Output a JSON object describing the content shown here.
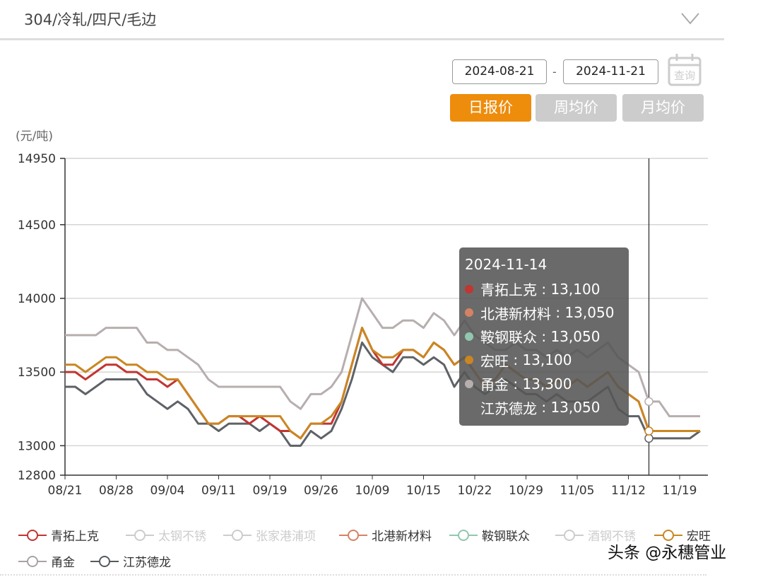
{
  "header": {
    "title": "304/冷轧/四尺/毛边"
  },
  "filters": {
    "start_date": "2024-08-21",
    "separator": "-",
    "end_date": "2024-11-21",
    "query_label": "查询"
  },
  "tabs": [
    {
      "label": "日报价",
      "active": true
    },
    {
      "label": "周均价",
      "active": false
    },
    {
      "label": "月均价",
      "active": false
    }
  ],
  "colors": {
    "accent": "#EE8C0C",
    "inactive_tab": "#CCCCCC"
  },
  "chart_data": {
    "type": "line",
    "ylabel": "(元/吨)",
    "ylim": [
      12800,
      14950
    ],
    "yticks": [
      12800,
      13000,
      13500,
      14000,
      14500,
      14950
    ],
    "grid": true,
    "legend_position": "bottom",
    "categories": [
      "08/21",
      "08/22",
      "08/23",
      "08/26",
      "08/27",
      "08/28",
      "08/29",
      "08/30",
      "09/02",
      "09/03",
      "09/04",
      "09/05",
      "09/06",
      "09/09",
      "09/10",
      "09/11",
      "09/12",
      "09/13",
      "09/14",
      "09/18",
      "09/19",
      "09/20",
      "09/23",
      "09/24",
      "09/25",
      "09/26",
      "09/27",
      "09/29",
      "09/30",
      "10/08",
      "10/09",
      "10/10",
      "10/11",
      "10/12",
      "10/14",
      "10/15",
      "10/16",
      "10/17",
      "10/18",
      "10/21",
      "10/22",
      "10/23",
      "10/24",
      "10/25",
      "10/28",
      "10/29",
      "10/30",
      "10/31",
      "11/01",
      "11/04",
      "11/05",
      "11/06",
      "11/07",
      "11/08",
      "11/11",
      "11/12",
      "11/13",
      "11/14",
      "11/15",
      "11/18",
      "11/19",
      "11/20",
      "11/21"
    ],
    "xtick_labels": [
      "08/21",
      "08/28",
      "09/04",
      "09/11",
      "09/19",
      "09/26",
      "10/09",
      "10/15",
      "10/22",
      "10/29",
      "11/05",
      "11/12",
      "11/19"
    ],
    "legend": [
      {
        "name": "青拓上克",
        "color": "#C23531",
        "enabled": true
      },
      {
        "name": "太钢不锈",
        "color": "#CCCCCC",
        "enabled": false
      },
      {
        "name": "张家港浦项",
        "color": "#CCCCCC",
        "enabled": false
      },
      {
        "name": "北港新材料",
        "color": "#D48265",
        "enabled": true
      },
      {
        "name": "鞍钢联众",
        "color": "#91C7AE",
        "enabled": true
      },
      {
        "name": "酒钢不锈",
        "color": "#CCCCCC",
        "enabled": false
      },
      {
        "name": "宏旺",
        "color": "#CA8622",
        "enabled": true
      },
      {
        "name": "甬金",
        "color": "#AAA3A3",
        "enabled": true
      },
      {
        "name": "江苏德龙",
        "color": "#555A5E",
        "enabled": true
      }
    ],
    "series": [
      {
        "name": "甬金",
        "color": "#B7AEAE",
        "values": [
          13750,
          13750,
          13750,
          13750,
          13800,
          13800,
          13800,
          13800,
          13700,
          13700,
          13650,
          13650,
          13600,
          13550,
          13450,
          13400,
          13400,
          13400,
          13400,
          13400,
          13400,
          13400,
          13300,
          13250,
          13350,
          13350,
          13400,
          13500,
          13750,
          14000,
          13900,
          13800,
          13800,
          13850,
          13850,
          13800,
          13900,
          13850,
          13750,
          13850,
          13750,
          13700,
          13650,
          13650,
          13700,
          13650,
          13650,
          13600,
          13650,
          13600,
          13650,
          13600,
          13650,
          13700,
          13600,
          13550,
          13500,
          13300,
          13300,
          13200,
          13200,
          13200,
          13200
        ]
      },
      {
        "name": "江苏德龙",
        "color": "#5E6266",
        "values": [
          13400,
          13400,
          13350,
          13400,
          13450,
          13450,
          13450,
          13450,
          13350,
          13300,
          13250,
          13300,
          13250,
          13150,
          13150,
          13100,
          13150,
          13150,
          13150,
          13100,
          13150,
          13100,
          13000,
          13000,
          13100,
          13050,
          13100,
          13250,
          13450,
          13700,
          13600,
          13550,
          13500,
          13600,
          13600,
          13550,
          13600,
          13550,
          13400,
          13500,
          13400,
          13350,
          13400,
          13450,
          13400,
          13350,
          13350,
          13300,
          13350,
          13300,
          13300,
          13300,
          13350,
          13400,
          13250,
          13200,
          13200,
          13050,
          13050,
          13050,
          13050,
          13050,
          13100
        ]
      },
      {
        "name": "青拓上克",
        "color": "#C23531",
        "values": [
          13500,
          13500,
          13450,
          13500,
          13550,
          13550,
          13500,
          13500,
          13450,
          13450,
          13400,
          13450,
          13350,
          13250,
          13150,
          13150,
          13200,
          13200,
          13150,
          13200,
          13150,
          13100,
          13100,
          13050,
          13150,
          13150,
          13150,
          13300,
          13550,
          13800,
          13650,
          13550,
          13550,
          13650,
          13650,
          13600,
          13700,
          13650,
          13550,
          13600,
          13500,
          13400,
          13450,
          13550,
          13500,
          13450,
          13450,
          13400,
          13450,
          13400,
          13450,
          13400,
          13450,
          13500,
          13400,
          13350,
          13300,
          13100,
          13100,
          13100,
          13100,
          13100,
          13100
        ]
      },
      {
        "name": "宏旺",
        "color": "#CA8622",
        "values": [
          13550,
          13550,
          13500,
          13550,
          13600,
          13600,
          13550,
          13550,
          13500,
          13500,
          13450,
          13450,
          13350,
          13250,
          13150,
          13150,
          13200,
          13200,
          13200,
          13200,
          13200,
          13200,
          13100,
          13050,
          13150,
          13150,
          13200,
          13300,
          13550,
          13800,
          13650,
          13600,
          13600,
          13650,
          13650,
          13600,
          13700,
          13650,
          13550,
          13600,
          13500,
          13400,
          13450,
          13550,
          13500,
          13450,
          13450,
          13400,
          13450,
          13400,
          13450,
          13400,
          13450,
          13500,
          13400,
          13350,
          13300,
          13100,
          13100,
          13100,
          13100,
          13100,
          13100
        ]
      }
    ],
    "tooltip": {
      "date": "2024-11-14",
      "rows": [
        {
          "name": "青拓上克",
          "value": "13,100",
          "color": "#C23531"
        },
        {
          "name": "北港新材料",
          "value": "13,050",
          "color": "#D48265"
        },
        {
          "name": "鞍钢联众",
          "value": "13,050",
          "color": "#91C7AE"
        },
        {
          "name": "宏旺",
          "value": "13,100",
          "color": "#CA8622"
        },
        {
          "name": "甬金",
          "value": "13,300",
          "color": "#B7AEAE"
        },
        {
          "name": "江苏德龙",
          "value": "13,050",
          "color": "#555A5E"
        }
      ]
    },
    "crosshair_category": "11/14"
  },
  "watermark": "头条 @永穗管业"
}
